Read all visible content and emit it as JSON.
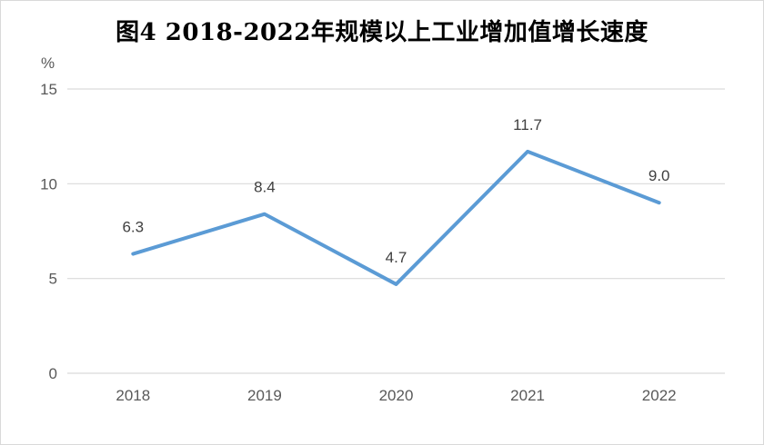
{
  "chart_data": {
    "type": "line",
    "title": "图4  2018-2022年规模以上工业增加值增长速度",
    "y_unit": "%",
    "categories": [
      "2018",
      "2019",
      "2020",
      "2021",
      "2022"
    ],
    "series": [
      {
        "values": [
          6.3,
          8.4,
          4.7,
          11.7,
          9.0
        ],
        "data_labels": [
          "6.3",
          "8.4",
          "4.7",
          "11.7",
          "9.0"
        ]
      }
    ],
    "ylim": [
      0,
      15
    ],
    "y_ticks": [
      0,
      5,
      10,
      15
    ],
    "grid": true,
    "legend": "none",
    "colors": {
      "line": "#5b9bd5",
      "grid": "#d9d9d9",
      "text": "#595959"
    }
  }
}
